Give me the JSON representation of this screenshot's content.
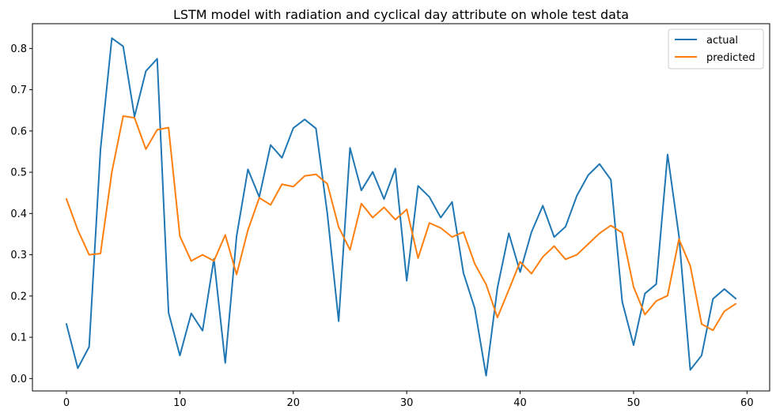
{
  "chart_data": {
    "type": "line",
    "title": "LSTM model with radiation and cyclical day attribute on whole test data",
    "xlabel": "",
    "ylabel": "",
    "xlim": [
      -3,
      62
    ],
    "ylim": [
      -0.03,
      0.86
    ],
    "xticks": [
      0,
      10,
      20,
      30,
      40,
      50,
      60
    ],
    "yticks": [
      0.0,
      0.1,
      0.2,
      0.3,
      0.4,
      0.5,
      0.6,
      0.7,
      0.8
    ],
    "xtick_labels": [
      "0",
      "10",
      "20",
      "30",
      "40",
      "50",
      "60"
    ],
    "ytick_labels": [
      "0.0",
      "0.1",
      "0.2",
      "0.3",
      "0.4",
      "0.5",
      "0.6",
      "0.7",
      "0.8"
    ],
    "legend_position": "top-right",
    "grid": false,
    "x": [
      0,
      1,
      2,
      3,
      4,
      5,
      6,
      7,
      8,
      9,
      10,
      11,
      12,
      13,
      14,
      15,
      16,
      17,
      18,
      19,
      20,
      21,
      22,
      23,
      24,
      25,
      26,
      27,
      28,
      29,
      30,
      31,
      32,
      33,
      34,
      35,
      36,
      37,
      38,
      39,
      40,
      41,
      42,
      43,
      44,
      45,
      46,
      47,
      48,
      49,
      50,
      51,
      52,
      53,
      54,
      55,
      56,
      57,
      58,
      59
    ],
    "series": [
      {
        "name": "actual",
        "color": "#1f77b4",
        "values": [
          0.132,
          0.025,
          0.077,
          0.555,
          0.825,
          0.805,
          0.635,
          0.745,
          0.775,
          0.16,
          0.056,
          0.158,
          0.116,
          0.29,
          0.038,
          0.345,
          0.507,
          0.44,
          0.566,
          0.535,
          0.607,
          0.628,
          0.606,
          0.4,
          0.139,
          0.559,
          0.456,
          0.501,
          0.435,
          0.509,
          0.237,
          0.467,
          0.44,
          0.39,
          0.428,
          0.256,
          0.17,
          0.007,
          0.22,
          0.352,
          0.258,
          0.355,
          0.419,
          0.343,
          0.368,
          0.443,
          0.493,
          0.52,
          0.482,
          0.186,
          0.081,
          0.206,
          0.229,
          0.543,
          0.346,
          0.021,
          0.056,
          0.193,
          0.217,
          0.194
        ]
      },
      {
        "name": "predicted",
        "color": "#ff7f0e",
        "values": [
          0.435,
          0.36,
          0.3,
          0.303,
          0.5,
          0.636,
          0.632,
          0.556,
          0.603,
          0.608,
          0.345,
          0.285,
          0.3,
          0.285,
          0.348,
          0.252,
          0.36,
          0.438,
          0.421,
          0.471,
          0.465,
          0.491,
          0.495,
          0.472,
          0.367,
          0.312,
          0.424,
          0.39,
          0.415,
          0.385,
          0.41,
          0.292,
          0.377,
          0.365,
          0.343,
          0.355,
          0.278,
          0.228,
          0.148,
          0.215,
          0.283,
          0.254,
          0.295,
          0.321,
          0.289,
          0.3,
          0.326,
          0.352,
          0.371,
          0.353,
          0.222,
          0.155,
          0.188,
          0.201,
          0.338,
          0.273,
          0.132,
          0.117,
          0.163,
          0.181
        ]
      }
    ]
  }
}
